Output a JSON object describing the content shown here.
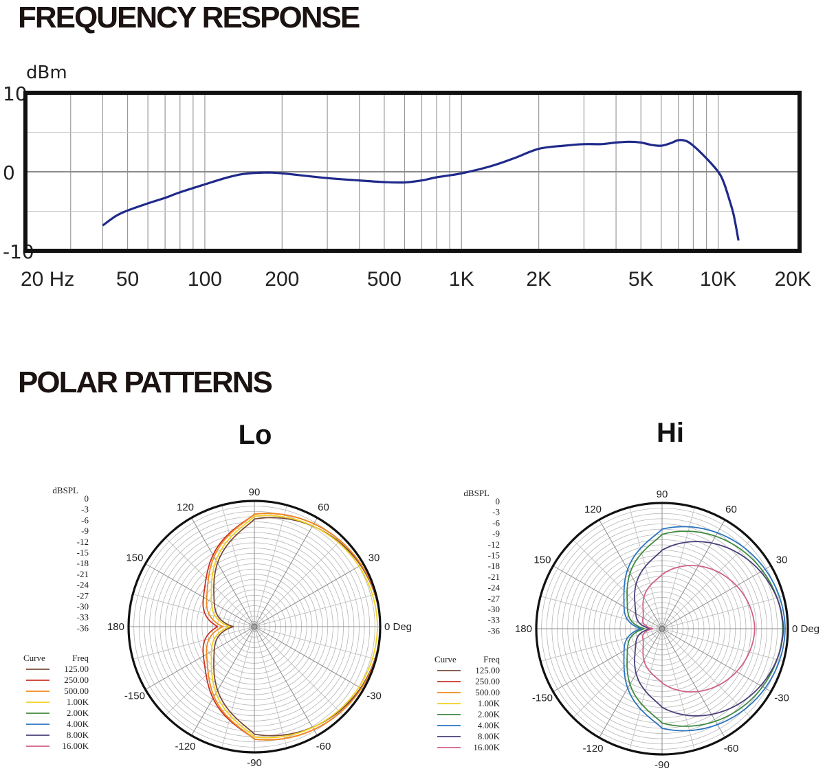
{
  "headings": {
    "frequency_response": "FREQUENCY RESPONSE",
    "polar_patterns": "POLAR PATTERNS"
  },
  "chart_data": [
    {
      "type": "line",
      "title": "FREQUENCY RESPONSE",
      "ylabel": "dBm",
      "ylim": [
        -10,
        10
      ],
      "xscale": "log",
      "xlim": [
        20,
        20000
      ],
      "y_tick_labels": [
        "10",
        "0",
        "-10"
      ],
      "x_tick_labels": [
        {
          "value": 20,
          "label": "20  Hz"
        },
        {
          "value": 50,
          "label": "50"
        },
        {
          "value": 100,
          "label": "100"
        },
        {
          "value": 200,
          "label": "200"
        },
        {
          "value": 500,
          "label": "500"
        },
        {
          "value": 1000,
          "label": "1K"
        },
        {
          "value": 2000,
          "label": "2K"
        },
        {
          "value": 5000,
          "label": "5K"
        },
        {
          "value": 10000,
          "label": "10K"
        },
        {
          "value": 20000,
          "label": "20K"
        }
      ],
      "series": [
        {
          "color": "#1f2a8a",
          "points": [
            [
              40,
              -6.8
            ],
            [
              45,
              -5.6
            ],
            [
              50,
              -4.9
            ],
            [
              60,
              -4.0
            ],
            [
              70,
              -3.3
            ],
            [
              80,
              -2.6
            ],
            [
              100,
              -1.6
            ],
            [
              120,
              -0.8
            ],
            [
              140,
              -0.3
            ],
            [
              170,
              -0.1
            ],
            [
              200,
              -0.2
            ],
            [
              300,
              -0.8
            ],
            [
              400,
              -1.1
            ],
            [
              500,
              -1.3
            ],
            [
              600,
              -1.35
            ],
            [
              700,
              -1.1
            ],
            [
              800,
              -0.7
            ],
            [
              1000,
              -0.2
            ],
            [
              1300,
              0.7
            ],
            [
              1600,
              1.7
            ],
            [
              2000,
              2.9
            ],
            [
              2500,
              3.3
            ],
            [
              3000,
              3.5
            ],
            [
              3500,
              3.5
            ],
            [
              4000,
              3.7
            ],
            [
              4500,
              3.8
            ],
            [
              5000,
              3.7
            ],
            [
              5500,
              3.4
            ],
            [
              6000,
              3.3
            ],
            [
              6500,
              3.6
            ],
            [
              7000,
              4.0
            ],
            [
              7500,
              3.9
            ],
            [
              8000,
              3.3
            ],
            [
              9000,
              1.7
            ],
            [
              10000,
              0.0
            ],
            [
              10500,
              -1.3
            ],
            [
              11000,
              -3.3
            ],
            [
              11500,
              -5.5
            ],
            [
              12000,
              -8.7
            ]
          ]
        }
      ]
    },
    {
      "type": "polar",
      "title": "Lo",
      "ylabel": "dBSPL",
      "r_tick_labels": [
        "0",
        "-3",
        "-6",
        "-9",
        "-12",
        "-15",
        "-18",
        "-21",
        "-24",
        "-27",
        "-30",
        "-33",
        "-36"
      ],
      "angle_labels": [
        {
          "deg": 90,
          "label": "90"
        },
        {
          "deg": 60,
          "label": "60"
        },
        {
          "deg": 30,
          "label": "30"
        },
        {
          "deg": 0,
          "label": "0 Deg"
        },
        {
          "deg": -30,
          "label": "-30"
        },
        {
          "deg": -60,
          "label": "-60"
        },
        {
          "deg": -90,
          "label": "-90"
        },
        {
          "deg": -120,
          "label": "-120"
        },
        {
          "deg": -150,
          "label": "-150"
        },
        {
          "deg": 180,
          "label": "180"
        },
        {
          "deg": 150,
          "label": "150"
        },
        {
          "deg": 120,
          "label": "120"
        }
      ],
      "legend_header": {
        "curve": "Curve",
        "freq": "Freq"
      },
      "legend": [
        {
          "freq": "125.00",
          "color": "#7a4b3a"
        },
        {
          "freq": "250.00",
          "color": "#c8322a"
        },
        {
          "freq": "500.00",
          "color": "#f08a1c"
        },
        {
          "freq": "1.00K",
          "color": "#f2d01f"
        },
        {
          "freq": "2.00K",
          "color": "#3f8a3f"
        },
        {
          "freq": "4.00K",
          "color": "#2a74c0"
        },
        {
          "freq": "8.00K",
          "color": "#4a3f7a"
        },
        {
          "freq": "16.00K",
          "color": "#d0608a"
        }
      ],
      "series": [
        {
          "name": "125.00",
          "color": "#7a4b3a",
          "front": 0,
          "side": -5.2,
          "rear": -30.0
        },
        {
          "name": "250.00",
          "color": "#c8322a",
          "front": 0,
          "side": -3.8,
          "rear": -25.5
        },
        {
          "name": "500.00",
          "color": "#f08a1c",
          "front": 0,
          "side": -3.8,
          "rear": -27.0
        },
        {
          "name": "1.00K",
          "color": "#f2d01f",
          "front": -0.8,
          "side": -4.4,
          "rear": -29.0
        }
      ]
    },
    {
      "type": "polar",
      "title": "Hi",
      "ylabel": "dBSPL",
      "r_tick_labels": [
        "0",
        "-3",
        "-6",
        "-9",
        "-12",
        "-15",
        "-18",
        "-21",
        "-24",
        "-27",
        "-30",
        "-33",
        "-36"
      ],
      "angle_labels": [
        {
          "deg": 90,
          "label": "90"
        },
        {
          "deg": 60,
          "label": "60"
        },
        {
          "deg": 30,
          "label": "30"
        },
        {
          "deg": 0,
          "label": "0 Deg"
        },
        {
          "deg": -30,
          "label": "-30"
        },
        {
          "deg": -60,
          "label": "-60"
        },
        {
          "deg": -90,
          "label": "-90"
        },
        {
          "deg": -120,
          "label": "-120"
        },
        {
          "deg": -150,
          "label": "-150"
        },
        {
          "deg": 180,
          "label": "180"
        },
        {
          "deg": 150,
          "label": "150"
        },
        {
          "deg": 120,
          "label": "120"
        }
      ],
      "legend_header": {
        "curve": "Curve",
        "freq": "Freq"
      },
      "legend": [
        {
          "freq": "125.00",
          "color": "#7a4b3a"
        },
        {
          "freq": "250.00",
          "color": "#c8322a"
        },
        {
          "freq": "500.00",
          "color": "#f08a1c"
        },
        {
          "freq": "1.00K",
          "color": "#f2d01f"
        },
        {
          "freq": "2.00K",
          "color": "#3f8a3f"
        },
        {
          "freq": "4.00K",
          "color": "#2a74c0"
        },
        {
          "freq": "8.00K",
          "color": "#4a3f7a"
        },
        {
          "freq": "16.00K",
          "color": "#d0608a"
        }
      ],
      "series": [
        {
          "name": "2.00K",
          "color": "#3f8a3f",
          "front": -1.5,
          "side": -9.0,
          "rear": -31.0
        },
        {
          "name": "4.00K",
          "color": "#2a74c0",
          "front": -0.8,
          "side": -7.5,
          "rear": -30.0
        },
        {
          "name": "8.00K",
          "color": "#4a3f7a",
          "front": -1.3,
          "side": -13.5,
          "rear": -33.0
        },
        {
          "name": "16.00K",
          "color": "#d0608a",
          "front": -9.5,
          "side": -20.5,
          "rear": -33.5
        }
      ]
    }
  ]
}
